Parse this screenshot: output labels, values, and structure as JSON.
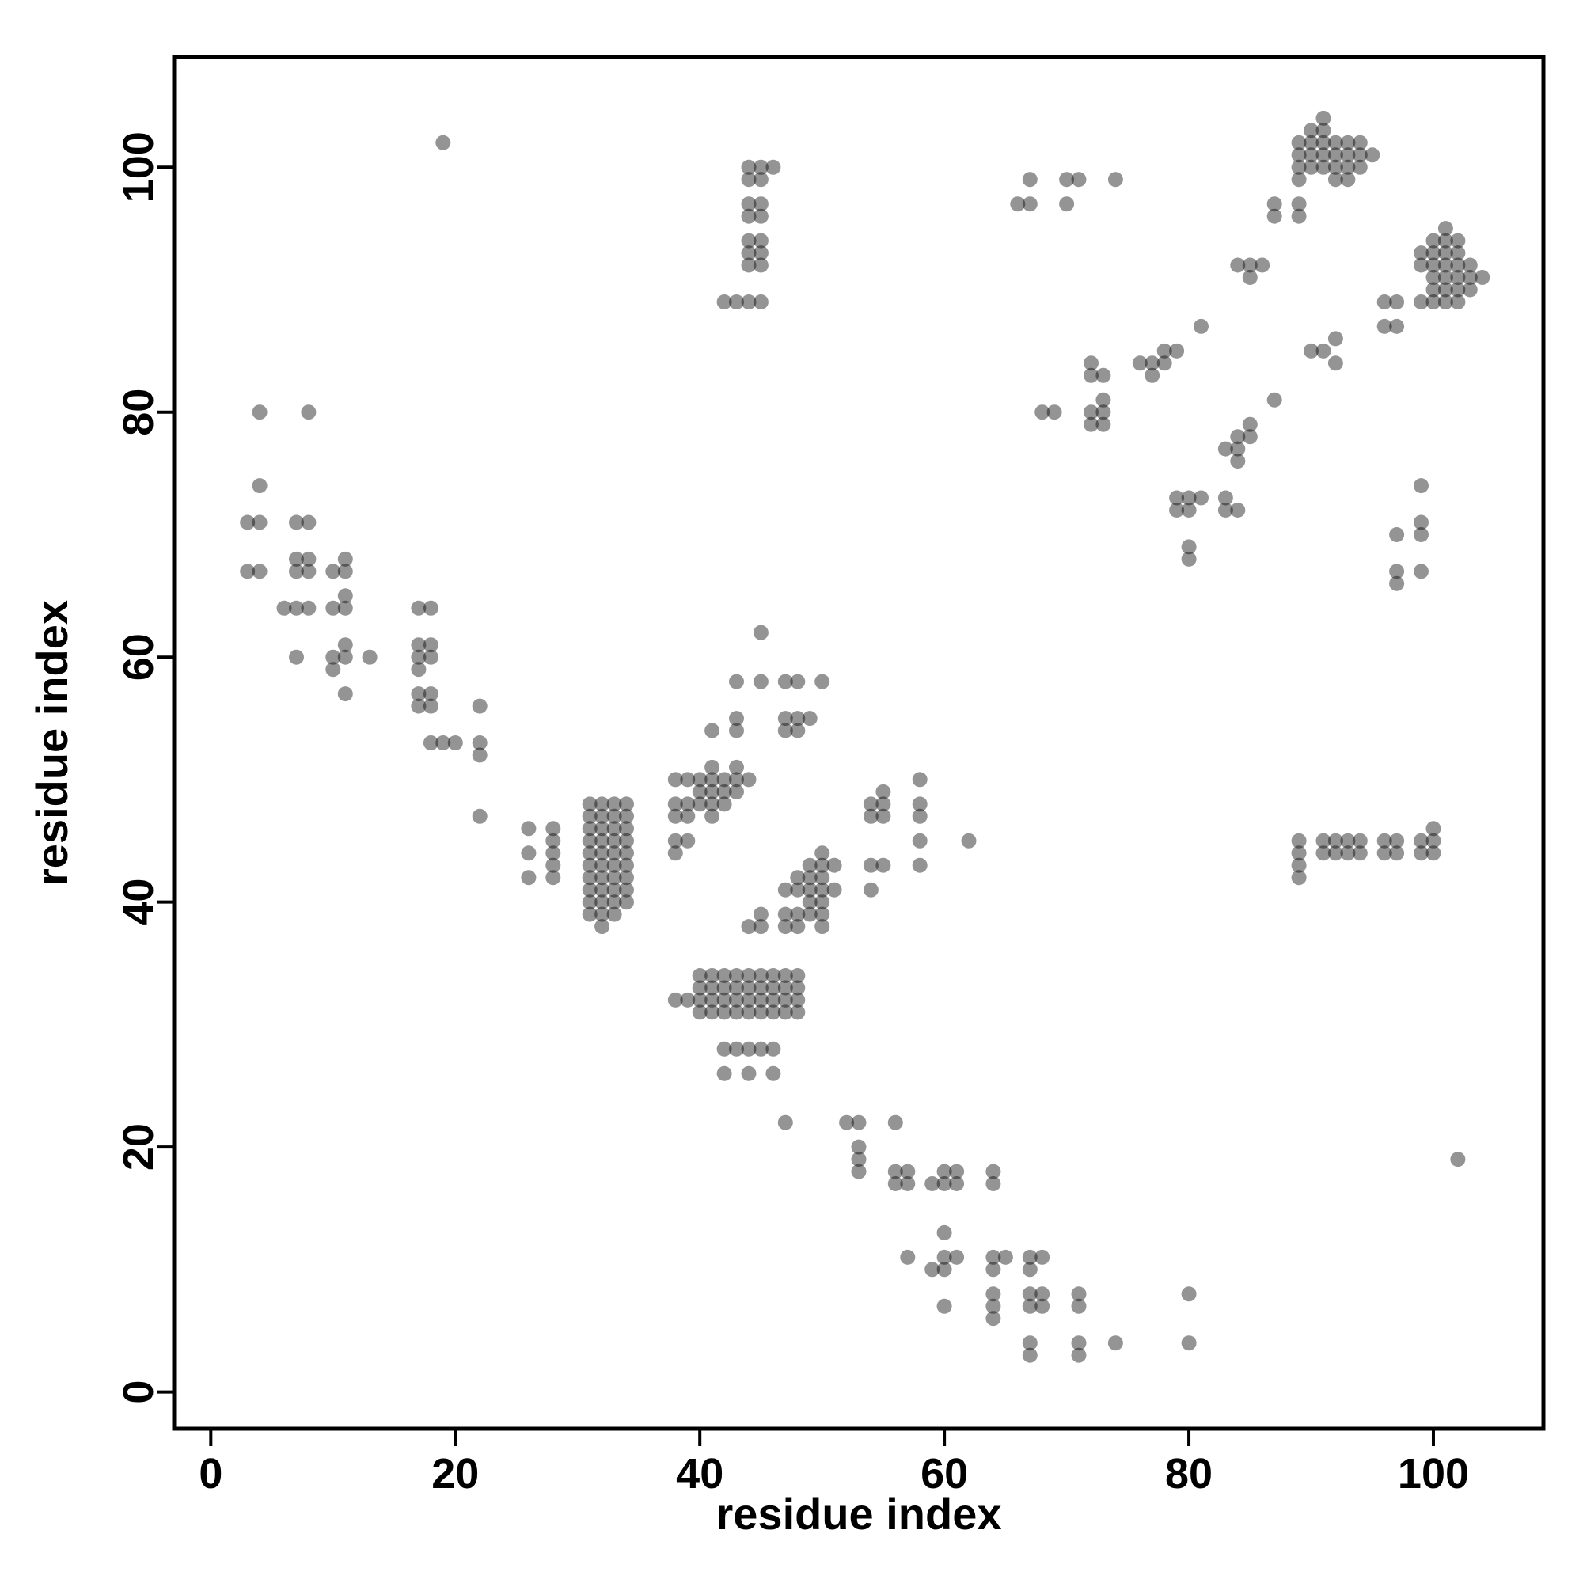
{
  "chart_data": {
    "type": "scatter",
    "title": "",
    "xlabel": "residue index",
    "ylabel": "residue index",
    "xlim": [
      -3,
      109
    ],
    "ylim": [
      -3,
      109
    ],
    "x_ticks": [
      0,
      20,
      40,
      60,
      80,
      100
    ],
    "y_ticks": [
      0,
      20,
      40,
      60,
      80,
      100
    ],
    "x_tick_labels": [
      "0",
      "20",
      "40",
      "60",
      "80",
      "100"
    ],
    "y_tick_labels": [
      "0",
      "20",
      "40",
      "60",
      "80",
      "100"
    ],
    "grid": false,
    "legend": "none",
    "point_color": "#000000",
    "note_shade": "darker points indicate overlapping contacts",
    "points": [
      [
        19,
        102
      ],
      [
        4,
        80
      ],
      [
        8,
        80
      ],
      [
        4,
        74
      ],
      [
        3,
        71
      ],
      [
        4,
        71
      ],
      [
        7,
        71
      ],
      [
        8,
        71
      ],
      [
        3,
        67
      ],
      [
        4,
        67
      ],
      [
        7,
        68
      ],
      [
        8,
        68
      ],
      [
        7,
        67
      ],
      [
        8,
        67
      ],
      [
        10,
        67
      ],
      [
        11,
        68
      ],
      [
        11,
        67
      ],
      [
        6,
        64
      ],
      [
        7,
        64
      ],
      [
        8,
        64
      ],
      [
        10,
        64
      ],
      [
        11,
        64
      ],
      [
        11,
        65
      ],
      [
        7,
        60
      ],
      [
        10,
        60
      ],
      [
        11,
        61
      ],
      [
        11,
        60
      ],
      [
        13,
        60
      ],
      [
        10,
        59
      ],
      [
        11,
        57
      ],
      [
        17,
        64
      ],
      [
        18,
        64
      ],
      [
        17,
        61
      ],
      [
        18,
        61
      ],
      [
        17,
        60
      ],
      [
        18,
        60
      ],
      [
        17,
        59
      ],
      [
        17,
        57
      ],
      [
        18,
        57
      ],
      [
        17,
        56
      ],
      [
        18,
        56
      ],
      [
        18,
        53
      ],
      [
        19,
        53
      ],
      [
        20,
        53
      ],
      [
        22,
        56
      ],
      [
        22,
        53
      ],
      [
        22,
        52
      ],
      [
        22,
        47
      ],
      [
        26,
        46
      ],
      [
        28,
        46
      ],
      [
        26,
        44
      ],
      [
        28,
        45
      ],
      [
        28,
        44
      ],
      [
        28,
        43
      ],
      [
        26,
        42
      ],
      [
        28,
        42
      ],
      [
        31,
        48
      ],
      [
        32,
        48
      ],
      [
        33,
        48
      ],
      [
        34,
        48
      ],
      [
        31,
        47
      ],
      [
        32,
        47
      ],
      [
        33,
        47
      ],
      [
        34,
        47
      ],
      [
        31,
        46
      ],
      [
        32,
        46
      ],
      [
        33,
        46
      ],
      [
        34,
        46
      ],
      [
        31,
        45
      ],
      [
        32,
        45
      ],
      [
        33,
        45
      ],
      [
        34,
        45
      ],
      [
        31,
        44
      ],
      [
        32,
        44
      ],
      [
        33,
        44
      ],
      [
        34,
        44
      ],
      [
        31,
        43
      ],
      [
        32,
        43
      ],
      [
        33,
        43
      ],
      [
        34,
        43
      ],
      [
        31,
        42
      ],
      [
        32,
        42
      ],
      [
        33,
        42
      ],
      [
        34,
        42
      ],
      [
        31,
        41
      ],
      [
        32,
        41
      ],
      [
        33,
        41
      ],
      [
        34,
        41
      ],
      [
        31,
        40
      ],
      [
        32,
        40
      ],
      [
        33,
        40
      ],
      [
        34,
        40
      ],
      [
        31,
        39
      ],
      [
        32,
        39
      ],
      [
        33,
        39
      ],
      [
        32,
        38
      ],
      [
        38,
        50
      ],
      [
        39,
        50
      ],
      [
        40,
        50
      ],
      [
        41,
        50
      ],
      [
        42,
        50
      ],
      [
        43,
        50
      ],
      [
        44,
        50
      ],
      [
        41,
        51
      ],
      [
        43,
        51
      ],
      [
        38,
        48
      ],
      [
        39,
        48
      ],
      [
        40,
        48
      ],
      [
        41,
        48
      ],
      [
        42,
        48
      ],
      [
        40,
        49
      ],
      [
        41,
        49
      ],
      [
        42,
        49
      ],
      [
        43,
        49
      ],
      [
        38,
        47
      ],
      [
        39,
        47
      ],
      [
        41,
        47
      ],
      [
        38,
        45
      ],
      [
        39,
        45
      ],
      [
        38,
        44
      ],
      [
        41,
        54
      ],
      [
        43,
        55
      ],
      [
        43,
        54
      ],
      [
        45,
        62
      ],
      [
        43,
        58
      ],
      [
        45,
        58
      ],
      [
        47,
        58
      ],
      [
        48,
        58
      ],
      [
        50,
        58
      ],
      [
        47,
        55
      ],
      [
        48,
        55
      ],
      [
        49,
        55
      ],
      [
        47,
        54
      ],
      [
        48,
        54
      ],
      [
        44,
        38
      ],
      [
        45,
        38
      ],
      [
        45,
        39
      ],
      [
        47,
        41
      ],
      [
        48,
        41
      ],
      [
        49,
        41
      ],
      [
        50,
        41
      ],
      [
        51,
        41
      ],
      [
        48,
        42
      ],
      [
        49,
        42
      ],
      [
        50,
        42
      ],
      [
        49,
        43
      ],
      [
        50,
        43
      ],
      [
        51,
        43
      ],
      [
        50,
        44
      ],
      [
        47,
        39
      ],
      [
        48,
        39
      ],
      [
        49,
        39
      ],
      [
        50,
        39
      ],
      [
        47,
        38
      ],
      [
        48,
        38
      ],
      [
        50,
        38
      ],
      [
        49,
        40
      ],
      [
        50,
        40
      ],
      [
        39,
        32
      ],
      [
        40,
        32
      ],
      [
        41,
        32
      ],
      [
        42,
        32
      ],
      [
        43,
        32
      ],
      [
        44,
        32
      ],
      [
        45,
        32
      ],
      [
        46,
        32
      ],
      [
        47,
        32
      ],
      [
        48,
        32
      ],
      [
        40,
        34
      ],
      [
        41,
        34
      ],
      [
        42,
        34
      ],
      [
        43,
        34
      ],
      [
        44,
        34
      ],
      [
        45,
        34
      ],
      [
        46,
        34
      ],
      [
        47,
        34
      ],
      [
        48,
        34
      ],
      [
        40,
        33
      ],
      [
        41,
        33
      ],
      [
        42,
        33
      ],
      [
        43,
        33
      ],
      [
        44,
        33
      ],
      [
        45,
        33
      ],
      [
        46,
        33
      ],
      [
        47,
        33
      ],
      [
        48,
        33
      ],
      [
        40,
        31
      ],
      [
        41,
        31
      ],
      [
        42,
        31
      ],
      [
        43,
        31
      ],
      [
        44,
        31
      ],
      [
        45,
        31
      ],
      [
        46,
        31
      ],
      [
        47,
        31
      ],
      [
        48,
        31
      ],
      [
        38,
        32
      ],
      [
        42,
        28
      ],
      [
        43,
        28
      ],
      [
        44,
        28
      ],
      [
        45,
        28
      ],
      [
        46,
        28
      ],
      [
        42,
        26
      ],
      [
        44,
        26
      ],
      [
        46,
        26
      ],
      [
        44,
        100
      ],
      [
        45,
        100
      ],
      [
        46,
        100
      ],
      [
        44,
        99
      ],
      [
        45,
        99
      ],
      [
        44,
        97
      ],
      [
        45,
        97
      ],
      [
        44,
        96
      ],
      [
        45,
        96
      ],
      [
        44,
        94
      ],
      [
        45,
        94
      ],
      [
        44,
        93
      ],
      [
        45,
        93
      ],
      [
        44,
        92
      ],
      [
        45,
        92
      ],
      [
        42,
        89
      ],
      [
        43,
        89
      ],
      [
        44,
        89
      ],
      [
        45,
        89
      ],
      [
        54,
        48
      ],
      [
        55,
        49
      ],
      [
        55,
        48
      ],
      [
        54,
        47
      ],
      [
        55,
        47
      ],
      [
        58,
        50
      ],
      [
        58,
        48
      ],
      [
        58,
        47
      ],
      [
        58,
        45
      ],
      [
        62,
        45
      ],
      [
        54,
        43
      ],
      [
        55,
        43
      ],
      [
        58,
        43
      ],
      [
        54,
        41
      ],
      [
        47,
        22
      ],
      [
        52,
        22
      ],
      [
        53,
        22
      ],
      [
        56,
        22
      ],
      [
        53,
        20
      ],
      [
        53,
        19
      ],
      [
        53,
        18
      ],
      [
        56,
        18
      ],
      [
        57,
        18
      ],
      [
        56,
        17
      ],
      [
        57,
        17
      ],
      [
        59,
        17
      ],
      [
        60,
        17
      ],
      [
        61,
        17
      ],
      [
        60,
        18
      ],
      [
        61,
        18
      ],
      [
        64,
        18
      ],
      [
        64,
        17
      ],
      [
        57,
        11
      ],
      [
        60,
        13
      ],
      [
        59,
        10
      ],
      [
        60,
        11
      ],
      [
        60,
        10
      ],
      [
        61,
        11
      ],
      [
        64,
        11
      ],
      [
        65,
        11
      ],
      [
        64,
        10
      ],
      [
        67,
        11
      ],
      [
        68,
        11
      ],
      [
        67,
        10
      ],
      [
        60,
        7
      ],
      [
        64,
        8
      ],
      [
        64,
        7
      ],
      [
        64,
        6
      ],
      [
        67,
        8
      ],
      [
        68,
        8
      ],
      [
        67,
        7
      ],
      [
        68,
        7
      ],
      [
        71,
        8
      ],
      [
        71,
        7
      ],
      [
        67,
        4
      ],
      [
        67,
        3
      ],
      [
        71,
        4
      ],
      [
        71,
        3
      ],
      [
        74,
        4
      ],
      [
        80,
        8
      ],
      [
        80,
        4
      ],
      [
        102,
        19
      ],
      [
        66,
        97
      ],
      [
        67,
        97
      ],
      [
        67,
        99
      ],
      [
        70,
        99
      ],
      [
        71,
        99
      ],
      [
        70,
        97
      ],
      [
        74,
        99
      ],
      [
        68,
        80
      ],
      [
        69,
        80
      ],
      [
        72,
        80
      ],
      [
        73,
        80
      ],
      [
        72,
        79
      ],
      [
        73,
        79
      ],
      [
        73,
        81
      ],
      [
        72,
        84
      ],
      [
        72,
        83
      ],
      [
        73,
        83
      ],
      [
        76,
        84
      ],
      [
        77,
        84
      ],
      [
        77,
        83
      ],
      [
        78,
        84
      ],
      [
        78,
        85
      ],
      [
        79,
        85
      ],
      [
        81,
        87
      ],
      [
        79,
        73
      ],
      [
        80,
        73
      ],
      [
        81,
        73
      ],
      [
        79,
        72
      ],
      [
        80,
        72
      ],
      [
        80,
        69
      ],
      [
        80,
        68
      ],
      [
        83,
        73
      ],
      [
        83,
        72
      ],
      [
        84,
        72
      ],
      [
        83,
        77
      ],
      [
        84,
        77
      ],
      [
        84,
        76
      ],
      [
        84,
        78
      ],
      [
        85,
        78
      ],
      [
        85,
        79
      ],
      [
        87,
        81
      ],
      [
        84,
        92
      ],
      [
        85,
        92
      ],
      [
        86,
        92
      ],
      [
        85,
        91
      ],
      [
        87,
        97
      ],
      [
        87,
        96
      ],
      [
        89,
        97
      ],
      [
        89,
        96
      ],
      [
        89,
        102
      ],
      [
        90,
        102
      ],
      [
        91,
        102
      ],
      [
        92,
        102
      ],
      [
        93,
        102
      ],
      [
        94,
        102
      ],
      [
        90,
        103
      ],
      [
        91,
        103
      ],
      [
        91,
        104
      ],
      [
        89,
        101
      ],
      [
        90,
        101
      ],
      [
        91,
        101
      ],
      [
        92,
        101
      ],
      [
        93,
        101
      ],
      [
        94,
        101
      ],
      [
        95,
        101
      ],
      [
        89,
        100
      ],
      [
        90,
        100
      ],
      [
        91,
        100
      ],
      [
        92,
        100
      ],
      [
        93,
        100
      ],
      [
        94,
        100
      ],
      [
        89,
        99
      ],
      [
        92,
        99
      ],
      [
        93,
        99
      ],
      [
        90,
        85
      ],
      [
        91,
        85
      ],
      [
        92,
        86
      ],
      [
        92,
        84
      ],
      [
        96,
        89
      ],
      [
        97,
        89
      ],
      [
        96,
        87
      ],
      [
        97,
        87
      ],
      [
        99,
        93
      ],
      [
        100,
        93
      ],
      [
        99,
        92
      ],
      [
        100,
        92
      ],
      [
        100,
        94
      ],
      [
        101,
        94
      ],
      [
        102,
        94
      ],
      [
        101,
        95
      ],
      [
        101,
        93
      ],
      [
        102,
        93
      ],
      [
        101,
        92
      ],
      [
        102,
        92
      ],
      [
        103,
        92
      ],
      [
        100,
        91
      ],
      [
        101,
        91
      ],
      [
        102,
        91
      ],
      [
        103,
        91
      ],
      [
        104,
        91
      ],
      [
        100,
        90
      ],
      [
        101,
        90
      ],
      [
        102,
        90
      ],
      [
        103,
        90
      ],
      [
        99,
        89
      ],
      [
        100,
        89
      ],
      [
        101,
        89
      ],
      [
        102,
        89
      ],
      [
        99,
        74
      ],
      [
        99,
        71
      ],
      [
        99,
        70
      ],
      [
        97,
        70
      ],
      [
        97,
        67
      ],
      [
        97,
        66
      ],
      [
        99,
        67
      ],
      [
        89,
        45
      ],
      [
        89,
        44
      ],
      [
        89,
        43
      ],
      [
        89,
        42
      ],
      [
        91,
        45
      ],
      [
        92,
        45
      ],
      [
        93,
        45
      ],
      [
        94,
        45
      ],
      [
        91,
        44
      ],
      [
        92,
        44
      ],
      [
        93,
        44
      ],
      [
        94,
        44
      ],
      [
        96,
        45
      ],
      [
        97,
        45
      ],
      [
        96,
        44
      ],
      [
        97,
        44
      ],
      [
        99,
        45
      ],
      [
        100,
        45
      ],
      [
        99,
        44
      ],
      [
        100,
        44
      ],
      [
        100,
        46
      ]
    ]
  }
}
